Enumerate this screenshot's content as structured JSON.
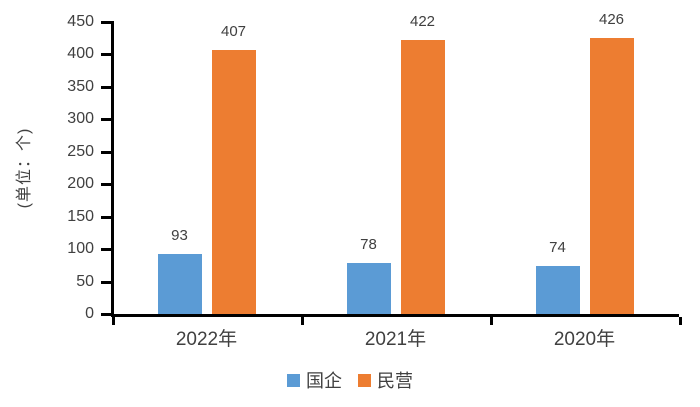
{
  "chart_data": {
    "type": "bar",
    "title": "",
    "xlabel": "",
    "ylabel": "(单位：个)",
    "categories": [
      "2022年",
      "2021年",
      "2020年"
    ],
    "series": [
      {
        "name": "国企",
        "color": "#5B9BD5",
        "values": [
          93,
          78,
          74
        ]
      },
      {
        "name": "民营",
        "color": "#ED7D31",
        "values": [
          407,
          422,
          426
        ]
      }
    ],
    "data_labels_shown": true,
    "ylim": [
      0,
      450
    ],
    "ytick_step": 50,
    "yticks": [
      0,
      50,
      100,
      150,
      200,
      250,
      300,
      350,
      400,
      450
    ],
    "grid": false,
    "legend_position": "bottom",
    "axis_color": "#000000",
    "text_color": "#404040",
    "background_color": "#FFFFFF"
  }
}
